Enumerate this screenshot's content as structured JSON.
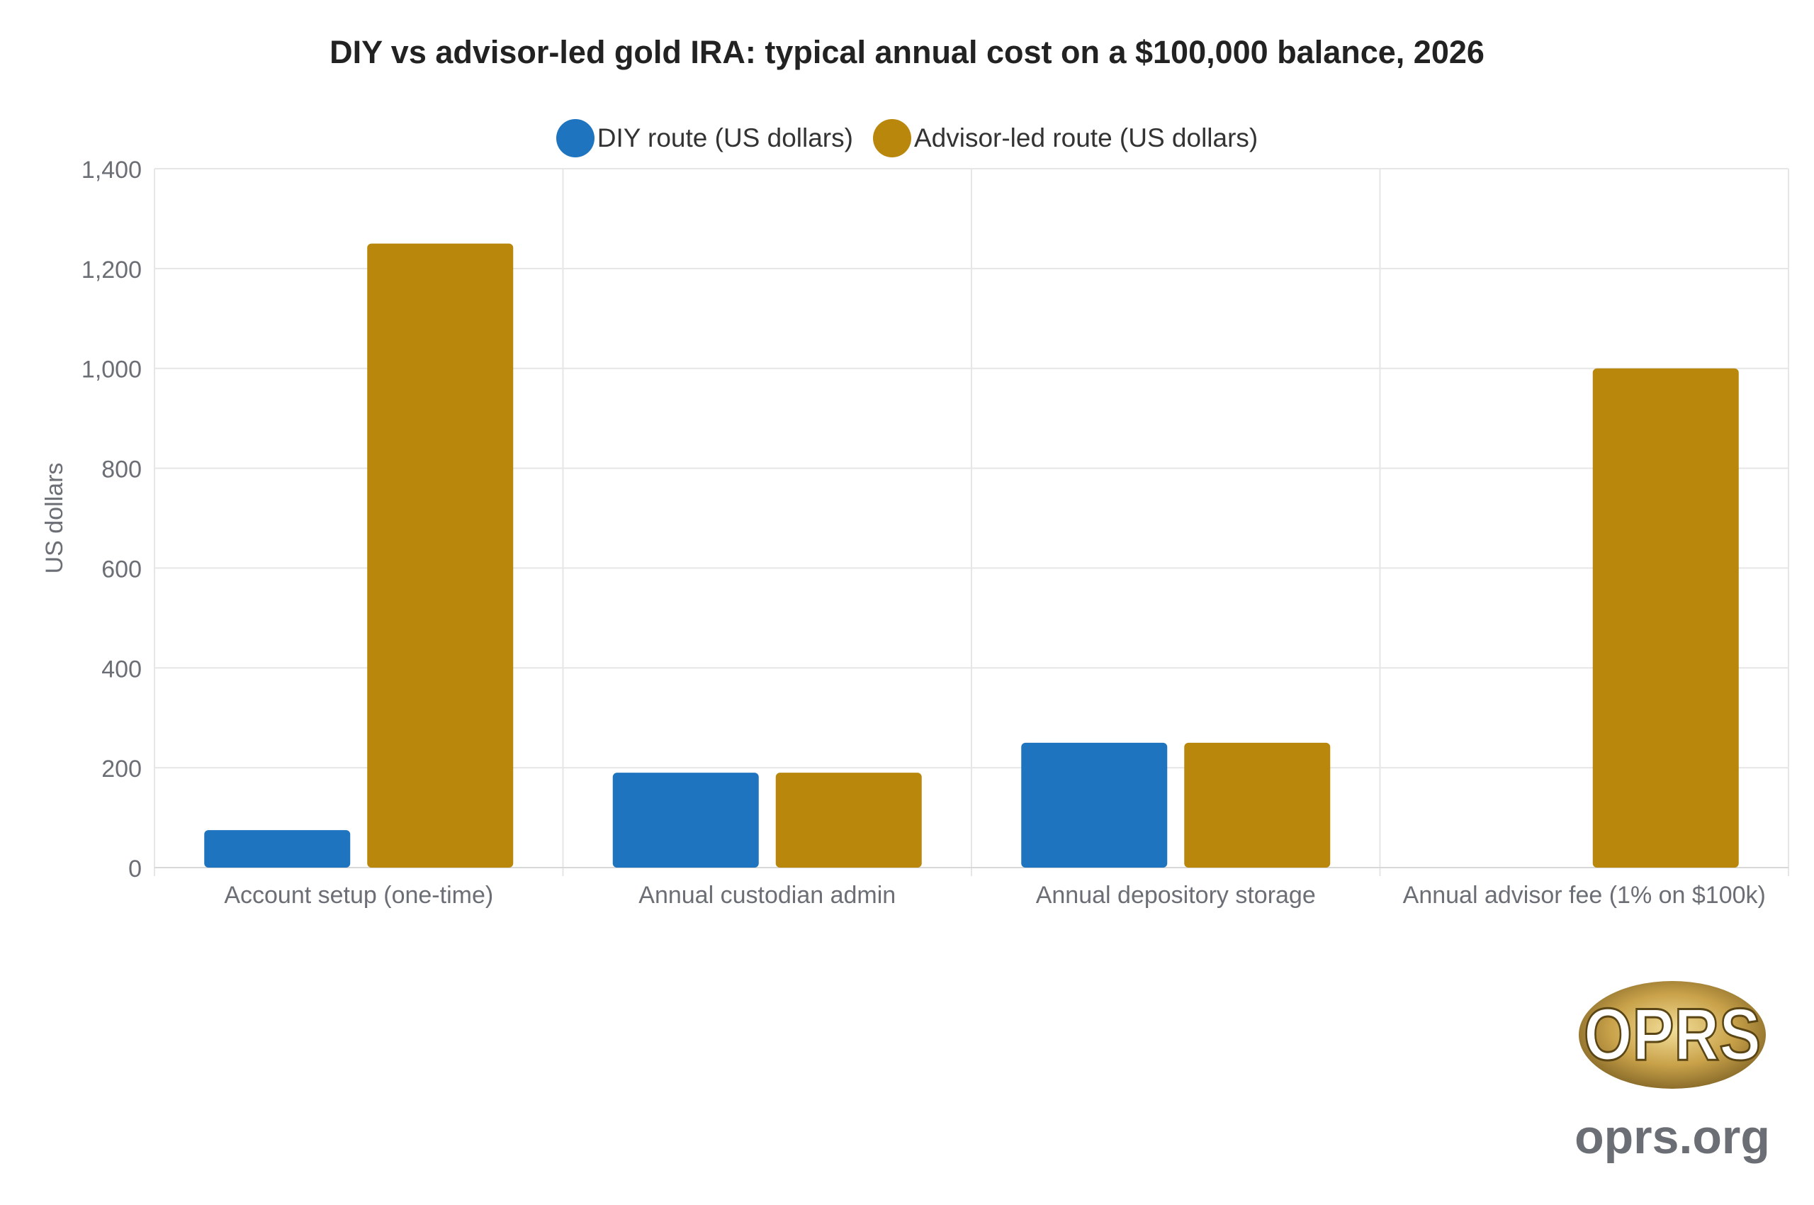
{
  "chart_data": {
    "type": "bar",
    "title": "DIY vs advisor-led gold IRA: typical annual cost on a $100,000 balance, 2026",
    "xlabel": "",
    "ylabel": "US dollars",
    "ylim": [
      0,
      1400
    ],
    "yticks": [
      0,
      200,
      400,
      600,
      800,
      1000,
      1200,
      1400
    ],
    "ytick_labels": [
      "0",
      "200",
      "400",
      "600",
      "800",
      "1,000",
      "1,200",
      "1,400"
    ],
    "categories": [
      "Account setup (one-time)",
      "Annual custodian admin",
      "Annual depository storage",
      "Annual advisor fee (1% on $100k)"
    ],
    "series": [
      {
        "name": "DIY route (US dollars)",
        "color": "#1f74c0",
        "values": [
          75,
          190,
          250,
          0
        ]
      },
      {
        "name": "Advisor-led route (US dollars)",
        "color": "#b8870b",
        "values": [
          1250,
          190,
          250,
          1000
        ]
      }
    ],
    "grid": true,
    "legend_position": "top"
  },
  "branding": {
    "logo_text": "OPRS",
    "site": "oprs.org"
  }
}
